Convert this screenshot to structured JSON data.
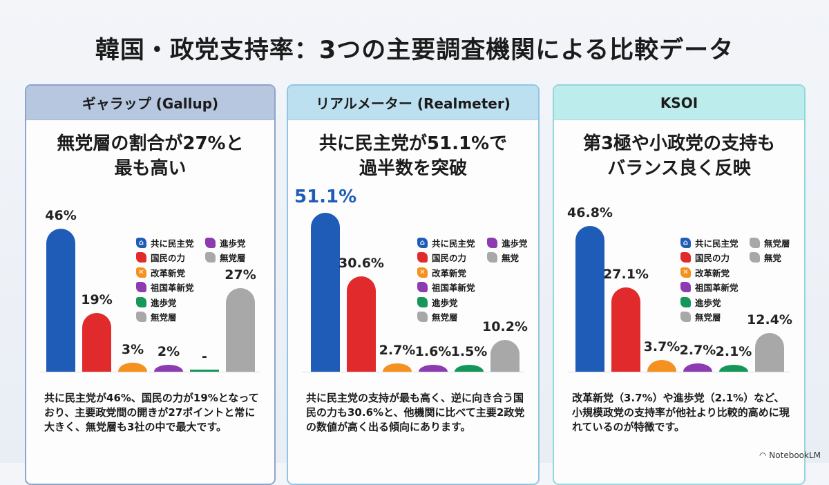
{
  "title": "韓国・政党支持率：3つの主要調査機関による比較データ",
  "colors": {
    "blue": "#1f5cb8",
    "red": "#e12a2c",
    "orange": "#f4911f",
    "purple": "#8c3bb0",
    "green": "#16975a",
    "grey": "#a8a8a8"
  },
  "panels": [
    {
      "header": "ギャラップ (Gallup)",
      "header_bg": "#b7c7df",
      "border": "#8ea4c8",
      "subtitle_1": "無党層の割合が27%と",
      "subtitle_2": "最も高い",
      "legend": [
        [
          "共に民主党",
          "blue",
          "house-icon"
        ],
        [
          "国民の力",
          "red",
          ""
        ],
        [
          "改革新党",
          "orange",
          "person-icon"
        ],
        [
          "祖国革新党",
          "purple",
          ""
        ],
        [
          "進歩党",
          "green",
          ""
        ],
        [
          "無党層",
          "grey",
          ""
        ],
        [
          "進歩党",
          "purple",
          ""
        ],
        [
          "無党層",
          "grey",
          ""
        ]
      ],
      "note": "共に民主党が46%、国民の力が19%となっており、主要政党間の開きが27ポイントと常に大きく、無党層も3社の中で最大です。"
    },
    {
      "header": "リアルメーター (Realmeter)",
      "header_bg": "#bde0f1",
      "border": "#90c6e2",
      "subtitle_1": "共に民主党が51.1%で",
      "subtitle_2": "過半数を突破",
      "legend": [
        [
          "共に民主党",
          "blue",
          "house-icon"
        ],
        [
          "国民の力",
          "red",
          ""
        ],
        [
          "改革新党",
          "orange",
          "person-icon"
        ],
        [
          "祖国革新党",
          "purple",
          ""
        ],
        [
          "進歩党",
          "green",
          ""
        ],
        [
          "無党層",
          "grey",
          ""
        ],
        [
          "進歩党",
          "purple",
          ""
        ],
        [
          "無党",
          "grey",
          ""
        ]
      ],
      "note": "共に民主党の支持が最も高く、逆に向き合う国民の力も30.6%と、他機関に比べて主要2政党の数値が高く出る傾向にあります。"
    },
    {
      "header": "KSOI",
      "header_bg": "#bdeced",
      "border": "#93d7da",
      "subtitle_1": "第3極や小政党の支持も",
      "subtitle_2": "バランス良く反映",
      "legend": [
        [
          "共に民主党",
          "blue",
          "house-icon"
        ],
        [
          "国民の力",
          "red",
          ""
        ],
        [
          "改革新党",
          "orange",
          "person-icon"
        ],
        [
          "祖国革新党",
          "purple",
          ""
        ],
        [
          "進歩党",
          "green",
          ""
        ],
        [
          "無党層",
          "grey",
          ""
        ],
        [
          "無党層",
          "grey",
          ""
        ],
        [
          "無党",
          "grey",
          ""
        ]
      ],
      "note": "改革新党（3.7%）や進歩党（2.1%）など、小規模政党の支持率が他社より比較的高めに現れているのが特徴です。"
    }
  ],
  "chart_data": [
    {
      "type": "bar",
      "title": "ギャラップ (Gallup)",
      "categories": [
        "共に民主党",
        "国民の力",
        "改革新党",
        "祖国革新党",
        "進歩党",
        "無党層"
      ],
      "values": [
        46,
        19,
        3,
        2,
        null,
        27
      ],
      "value_labels": [
        "46%",
        "19%",
        "3%",
        "2%",
        "-",
        "27%"
      ],
      "colors": [
        "blue",
        "red",
        "orange",
        "purple",
        "green",
        "grey"
      ],
      "ylim": [
        0,
        52
      ],
      "legend": "top-right"
    },
    {
      "type": "bar",
      "title": "リアルメーター (Realmeter)",
      "categories": [
        "共に民主党",
        "国民の力",
        "改革新党",
        "祖国革新党",
        "進歩党",
        "無党"
      ],
      "values": [
        51.1,
        30.6,
        2.7,
        1.6,
        1.5,
        10.2
      ],
      "value_labels": [
        "51.1%",
        "30.6%",
        "2.7%",
        "1.6%",
        "1.5%",
        "10.2%"
      ],
      "colors": [
        "blue",
        "red",
        "orange",
        "purple",
        "green",
        "grey"
      ],
      "ylim": [
        0,
        52
      ],
      "legend": "top-right"
    },
    {
      "type": "bar",
      "title": "KSOI",
      "categories": [
        "共に民主党",
        "国民の力",
        "改革新党",
        "祖国革新党",
        "進歩党",
        "無党"
      ],
      "values": [
        46.8,
        27.1,
        3.7,
        2.7,
        2.1,
        12.4
      ],
      "value_labels": [
        "46.8%",
        "27.1%",
        "3.7%",
        "2.7%",
        "2.1%",
        "12.4%"
      ],
      "colors": [
        "blue",
        "red",
        "orange",
        "purple",
        "green",
        "grey"
      ],
      "ylim": [
        0,
        52
      ],
      "legend": "top-right"
    }
  ],
  "brand": "NotebookLM"
}
